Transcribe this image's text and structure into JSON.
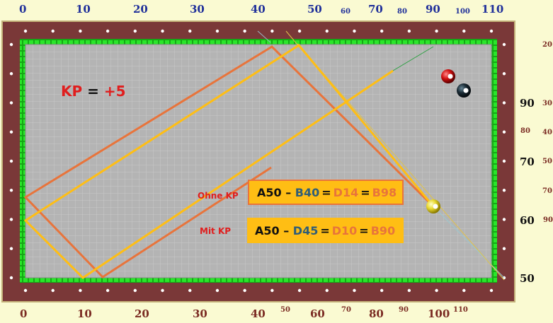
{
  "top_scale": [
    {
      "t": "0",
      "cls": ""
    },
    {
      "t": "10",
      "cls": ""
    },
    {
      "t": "20",
      "cls": ""
    },
    {
      "t": "30",
      "cls": ""
    },
    {
      "t": "40",
      "cls": ""
    },
    {
      "t": "50",
      "cls": ""
    },
    {
      "t": "60",
      "cls": "small"
    },
    {
      "t": "70",
      "cls": ""
    },
    {
      "t": "80",
      "cls": "small"
    },
    {
      "t": "90",
      "cls": ""
    },
    {
      "t": "100",
      "cls": "small"
    },
    {
      "t": "110",
      "cls": ""
    }
  ],
  "bottom_scale": [
    {
      "t": "0",
      "cls": ""
    },
    {
      "t": "10",
      "cls": ""
    },
    {
      "t": "20",
      "cls": ""
    },
    {
      "t": "30",
      "cls": ""
    },
    {
      "t": "40",
      "cls": ""
    },
    {
      "t": "50",
      "cls": "small"
    },
    {
      "t": "60",
      "cls": ""
    },
    {
      "t": "70",
      "cls": "small"
    },
    {
      "t": "80",
      "cls": ""
    },
    {
      "t": "90",
      "cls": "small"
    },
    {
      "t": "100",
      "cls": ""
    },
    {
      "t": "110",
      "cls": "small"
    }
  ],
  "right_big": [
    "90",
    "70",
    "60",
    "50"
  ],
  "right_small": [
    "20",
    "30",
    "80",
    "40",
    "50",
    "70",
    "90"
  ],
  "kp": {
    "prefix": "KP",
    "eq": " = ",
    "value": "+5"
  },
  "labels": {
    "ohne": "Ohne KP",
    "mit": "Mit KP"
  },
  "ohne_box": {
    "a": "A50",
    "dash": " – ",
    "b": "B40",
    "eq": "=",
    "d": "D14",
    "e": "B98"
  },
  "mit_box": {
    "a": "A50",
    "dash": " – ",
    "b": "D45",
    "eq": "=",
    "d": "D10",
    "e": "B90"
  },
  "colors": {
    "orange": "#e8743b",
    "yellow": "#ffbe14",
    "cloth": "#b4b4b4",
    "rail": "#7a3838",
    "cushion": "#1ee61e"
  }
}
